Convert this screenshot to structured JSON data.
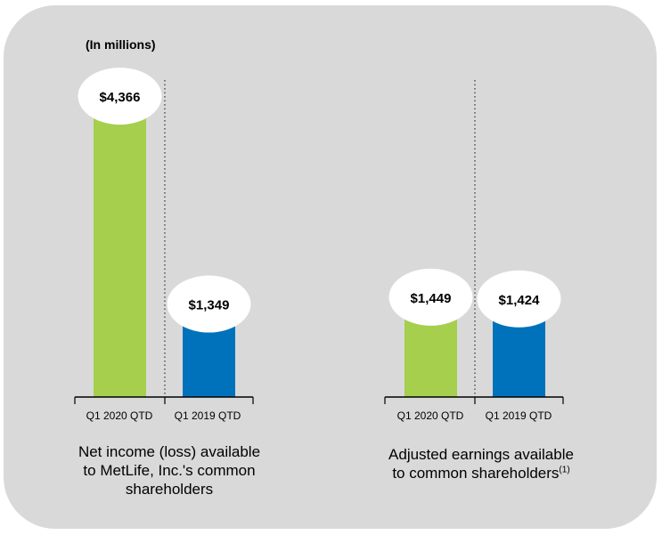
{
  "units_label": "(In millions)",
  "colors": {
    "green": "#a5cf4c",
    "blue": "#0072bc",
    "panel": "#d9d9d9"
  },
  "chart_data": [
    {
      "type": "bar",
      "title": "Net income (loss) available to MetLife, Inc.'s common shareholders",
      "title_lines": [
        "Net income (loss) available",
        "to MetLife, Inc.'s common",
        "shareholders"
      ],
      "categories": [
        "Q1 2020 QTD",
        "Q1 2019 QTD"
      ],
      "values": [
        4366,
        1349
      ],
      "value_labels": [
        "$4,366",
        "$1,349"
      ],
      "unit": "millions",
      "ylim": [
        0,
        4650
      ]
    },
    {
      "type": "bar",
      "title": "Adjusted earnings available to common shareholders",
      "title_lines": [
        "Adjusted earnings available",
        "to common shareholders"
      ],
      "footnote_marker": "(1)",
      "categories": [
        "Q1 2020 QTD",
        "Q1 2019 QTD"
      ],
      "values": [
        1449,
        1424
      ],
      "value_labels": [
        "$1,449",
        "$1,424"
      ],
      "unit": "millions",
      "ylim": [
        0,
        4650
      ]
    }
  ]
}
